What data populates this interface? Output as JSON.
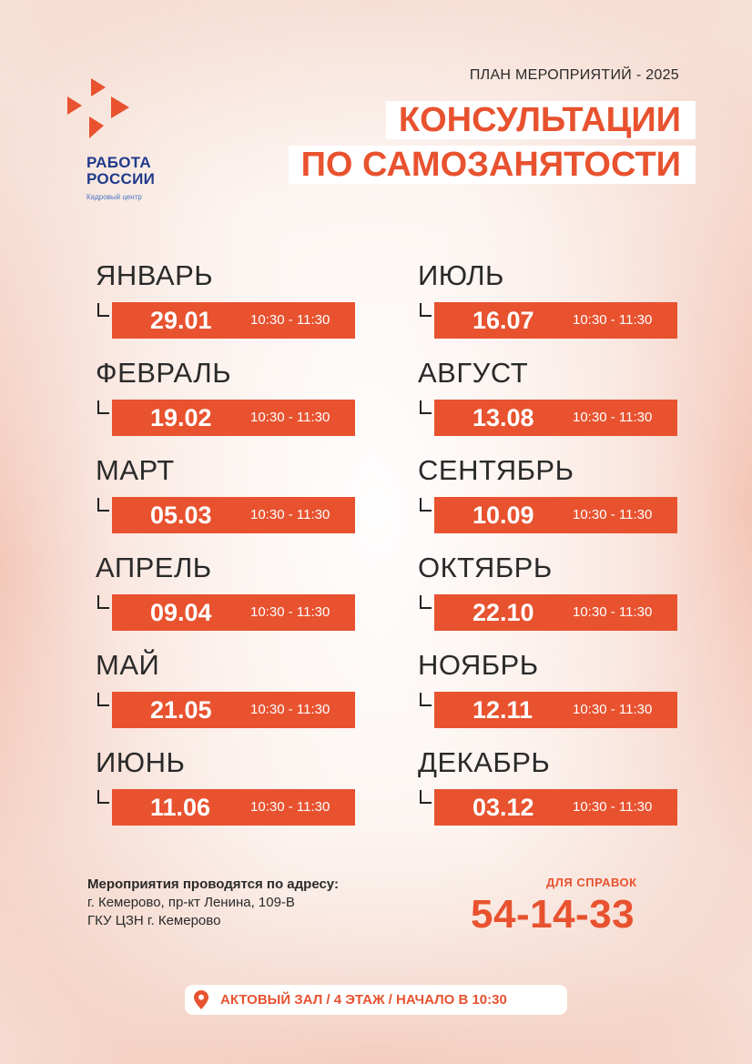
{
  "brand": {
    "logo_line1": "РАБОТА",
    "logo_line2": "РОССИИ",
    "logo_sub": "Кадровый центр",
    "accent": "#e8522f",
    "logo_color": "#1f3a8a"
  },
  "header": {
    "plan": "ПЛАН МЕРОПРИЯТИЙ - 2025",
    "title_line1": "КОНСУЛЬТАЦИИ",
    "title_line2": "ПО САМОЗАНЯТОСТИ"
  },
  "months": [
    {
      "name": "ЯНВАРЬ",
      "date": "29.01",
      "time": "10:30 - 11:30"
    },
    {
      "name": "ФЕВРАЛЬ",
      "date": "19.02",
      "time": "10:30 - 11:30"
    },
    {
      "name": "МАРТ",
      "date": "05.03",
      "time": "10:30 - 11:30"
    },
    {
      "name": "АПРЕЛЬ",
      "date": "09.04",
      "time": "10:30 - 11:30"
    },
    {
      "name": "МАЙ",
      "date": "21.05",
      "time": "10:30 - 11:30"
    },
    {
      "name": "ИЮНЬ",
      "date": "11.06",
      "time": "10:30 - 11:30"
    },
    {
      "name": "ИЮЛЬ",
      "date": "16.07",
      "time": "10:30 - 11:30"
    },
    {
      "name": "АВГУСТ",
      "date": "13.08",
      "time": "10:30 - 11:30"
    },
    {
      "name": "СЕНТЯБРЬ",
      "date": "10.09",
      "time": "10:30 - 11:30"
    },
    {
      "name": "ОКТЯБРЬ",
      "date": "22.10",
      "time": "10:30 - 11:30"
    },
    {
      "name": "НОЯБРЬ",
      "date": "12.11",
      "time": "10:30 - 11:30"
    },
    {
      "name": "ДЕКАБРЬ",
      "date": "03.12",
      "time": "10:30 - 11:30"
    }
  ],
  "address": {
    "heading": "Мероприятия проводятся по адресу:",
    "line1": "г. Кемерово, пр-кт Ленина, 109-В",
    "line2": "ГКУ ЦЗН г. Кемерово"
  },
  "contact": {
    "label": "ДЛЯ СПРАВОК",
    "phone": "54-14-33"
  },
  "footer": {
    "icon": "location-pin-icon",
    "text": "АКТОВЫЙ ЗАЛ / 4 ЭТАЖ / НАЧАЛО В 10:30"
  }
}
